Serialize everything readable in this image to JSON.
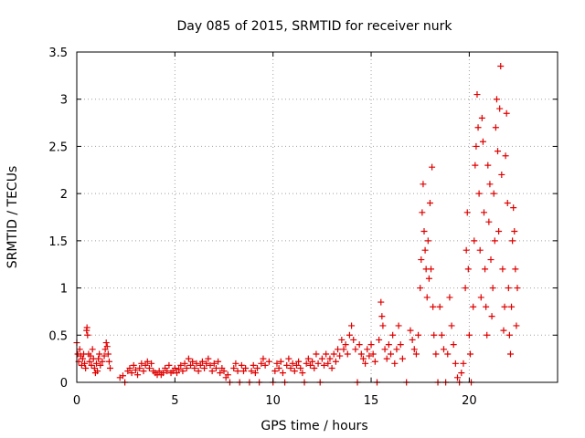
{
  "chart_data": {
    "type": "scatter",
    "title": "Day 085 of 2015, SRMTID for receiver nurk",
    "xlabel": "GPS time / hours",
    "ylabel": "SRMTID / TECUs",
    "xlim": [
      0,
      24.5
    ],
    "ylim": [
      0,
      3.5
    ],
    "x_ticks": [
      0,
      5,
      10,
      15,
      20
    ],
    "x_tick_labels": [
      "0",
      "5",
      "10",
      "15",
      "20"
    ],
    "y_ticks": [
      0,
      0.5,
      1,
      1.5,
      2,
      2.5,
      3,
      3.5
    ],
    "y_tick_labels": [
      "0",
      "0.5",
      "1",
      "1.5",
      "2",
      "2.5",
      "3",
      "3.5"
    ],
    "grid": true,
    "marker": "plus",
    "series": [
      {
        "name": "SRMTID",
        "color": "#e00000",
        "points": [
          [
            0.0,
            0.42
          ],
          [
            0.05,
            0.3
          ],
          [
            0.1,
            0.22
          ],
          [
            0.15,
            0.35
          ],
          [
            0.2,
            0.28
          ],
          [
            0.25,
            0.18
          ],
          [
            0.3,
            0.25
          ],
          [
            0.35,
            0.3
          ],
          [
            0.4,
            0.2
          ],
          [
            0.45,
            0.15
          ],
          [
            0.5,
            0.55
          ],
          [
            0.52,
            0.58
          ],
          [
            0.55,
            0.5
          ],
          [
            0.6,
            0.3
          ],
          [
            0.65,
            0.22
          ],
          [
            0.7,
            0.28
          ],
          [
            0.75,
            0.18
          ],
          [
            0.8,
            0.35
          ],
          [
            0.85,
            0.25
          ],
          [
            0.9,
            0.15
          ],
          [
            0.95,
            0.1
          ],
          [
            1.0,
            0.2
          ],
          [
            1.05,
            0.12
          ],
          [
            1.1,
            0.25
          ],
          [
            1.15,
            0.3
          ],
          [
            1.2,
            0.18
          ],
          [
            1.3,
            0.22
          ],
          [
            1.4,
            0.28
          ],
          [
            1.45,
            0.35
          ],
          [
            1.5,
            0.42
          ],
          [
            1.55,
            0.38
          ],
          [
            1.6,
            0.3
          ],
          [
            1.65,
            0.22
          ],
          [
            1.7,
            0.15
          ],
          [
            2.2,
            0.05
          ],
          [
            2.35,
            0.07
          ],
          [
            2.45,
            0.0
          ],
          [
            2.6,
            0.12
          ],
          [
            2.7,
            0.15
          ],
          [
            2.8,
            0.1
          ],
          [
            2.9,
            0.18
          ],
          [
            3.0,
            0.13
          ],
          [
            3.1,
            0.08
          ],
          [
            3.2,
            0.15
          ],
          [
            3.3,
            0.2
          ],
          [
            3.4,
            0.12
          ],
          [
            3.5,
            0.18
          ],
          [
            3.6,
            0.22
          ],
          [
            3.7,
            0.15
          ],
          [
            3.8,
            0.2
          ],
          [
            3.9,
            0.12
          ],
          [
            4.0,
            0.1
          ],
          [
            4.1,
            0.08
          ],
          [
            4.2,
            0.12
          ],
          [
            4.3,
            0.08
          ],
          [
            4.4,
            0.1
          ],
          [
            4.5,
            0.15
          ],
          [
            4.6,
            0.12
          ],
          [
            4.7,
            0.18
          ],
          [
            4.8,
            0.1
          ],
          [
            4.9,
            0.12
          ],
          [
            5.0,
            0.15
          ],
          [
            5.1,
            0.1
          ],
          [
            5.2,
            0.14
          ],
          [
            5.3,
            0.18
          ],
          [
            5.4,
            0.12
          ],
          [
            5.5,
            0.2
          ],
          [
            5.6,
            0.15
          ],
          [
            5.7,
            0.25
          ],
          [
            5.8,
            0.18
          ],
          [
            5.9,
            0.22
          ],
          [
            6.0,
            0.15
          ],
          [
            6.1,
            0.2
          ],
          [
            6.2,
            0.12
          ],
          [
            6.3,
            0.18
          ],
          [
            6.4,
            0.22
          ],
          [
            6.5,
            0.15
          ],
          [
            6.6,
            0.2
          ],
          [
            6.7,
            0.25
          ],
          [
            6.8,
            0.18
          ],
          [
            6.9,
            0.12
          ],
          [
            7.0,
            0.2
          ],
          [
            7.1,
            0.15
          ],
          [
            7.2,
            0.22
          ],
          [
            7.3,
            0.1
          ],
          [
            7.4,
            0.15
          ],
          [
            7.5,
            0.12
          ],
          [
            7.6,
            0.05
          ],
          [
            7.7,
            0.08
          ],
          [
            7.8,
            0.0
          ],
          [
            8.0,
            0.15
          ],
          [
            8.1,
            0.2
          ],
          [
            8.2,
            0.12
          ],
          [
            8.3,
            0.0
          ],
          [
            8.4,
            0.18
          ],
          [
            8.5,
            0.12
          ],
          [
            8.6,
            0.15
          ],
          [
            8.8,
            0.0
          ],
          [
            8.9,
            0.12
          ],
          [
            9.0,
            0.18
          ],
          [
            9.1,
            0.1
          ],
          [
            9.2,
            0.15
          ],
          [
            9.3,
            0.0
          ],
          [
            9.4,
            0.2
          ],
          [
            9.5,
            0.25
          ],
          [
            9.6,
            0.18
          ],
          [
            9.8,
            0.22
          ],
          [
            10.0,
            0.0
          ],
          [
            10.1,
            0.12
          ],
          [
            10.2,
            0.2
          ],
          [
            10.3,
            0.15
          ],
          [
            10.4,
            0.22
          ],
          [
            10.5,
            0.1
          ],
          [
            10.6,
            0.0
          ],
          [
            10.7,
            0.18
          ],
          [
            10.8,
            0.25
          ],
          [
            10.9,
            0.15
          ],
          [
            11.0,
            0.2
          ],
          [
            11.1,
            0.12
          ],
          [
            11.2,
            0.18
          ],
          [
            11.3,
            0.22
          ],
          [
            11.4,
            0.15
          ],
          [
            11.5,
            0.1
          ],
          [
            11.6,
            0.0
          ],
          [
            11.7,
            0.2
          ],
          [
            11.8,
            0.25
          ],
          [
            11.9,
            0.18
          ],
          [
            12.0,
            0.22
          ],
          [
            12.1,
            0.15
          ],
          [
            12.2,
            0.3
          ],
          [
            12.3,
            0.2
          ],
          [
            12.4,
            0.0
          ],
          [
            12.5,
            0.25
          ],
          [
            12.6,
            0.18
          ],
          [
            12.7,
            0.3
          ],
          [
            12.8,
            0.2
          ],
          [
            12.9,
            0.25
          ],
          [
            13.0,
            0.15
          ],
          [
            13.1,
            0.3
          ],
          [
            13.2,
            0.22
          ],
          [
            13.3,
            0.35
          ],
          [
            13.4,
            0.28
          ],
          [
            13.5,
            0.45
          ],
          [
            13.6,
            0.35
          ],
          [
            13.7,
            0.4
          ],
          [
            13.8,
            0.3
          ],
          [
            13.9,
            0.5
          ],
          [
            14.0,
            0.6
          ],
          [
            14.1,
            0.45
          ],
          [
            14.2,
            0.35
          ],
          [
            14.3,
            0.0
          ],
          [
            14.4,
            0.4
          ],
          [
            14.5,
            0.3
          ],
          [
            14.6,
            0.25
          ],
          [
            14.7,
            0.2
          ],
          [
            14.8,
            0.35
          ],
          [
            14.9,
            0.28
          ],
          [
            15.0,
            0.4
          ],
          [
            15.1,
            0.3
          ],
          [
            15.2,
            0.22
          ],
          [
            15.3,
            0.0
          ],
          [
            15.4,
            0.45
          ],
          [
            15.5,
            0.85
          ],
          [
            15.55,
            0.7
          ],
          [
            15.6,
            0.6
          ],
          [
            15.7,
            0.35
          ],
          [
            15.8,
            0.25
          ],
          [
            15.9,
            0.4
          ],
          [
            16.0,
            0.3
          ],
          [
            16.1,
            0.5
          ],
          [
            16.2,
            0.2
          ],
          [
            16.3,
            0.35
          ],
          [
            16.4,
            0.6
          ],
          [
            16.5,
            0.4
          ],
          [
            16.6,
            0.25
          ],
          [
            16.8,
            0.0
          ],
          [
            17.0,
            0.55
          ],
          [
            17.1,
            0.45
          ],
          [
            17.2,
            0.35
          ],
          [
            17.3,
            0.3
          ],
          [
            17.4,
            0.5
          ],
          [
            17.5,
            1.0
          ],
          [
            17.55,
            1.3
          ],
          [
            17.6,
            1.8
          ],
          [
            17.65,
            2.1
          ],
          [
            17.7,
            1.6
          ],
          [
            17.75,
            1.4
          ],
          [
            17.8,
            1.2
          ],
          [
            17.85,
            0.9
          ],
          [
            17.9,
            1.5
          ],
          [
            17.95,
            1.1
          ],
          [
            18.0,
            1.9
          ],
          [
            18.05,
            1.2
          ],
          [
            18.1,
            2.28
          ],
          [
            18.15,
            0.8
          ],
          [
            18.2,
            0.5
          ],
          [
            18.3,
            0.3
          ],
          [
            18.4,
            0.0
          ],
          [
            18.5,
            0.8
          ],
          [
            18.6,
            0.5
          ],
          [
            18.7,
            0.35
          ],
          [
            18.8,
            0.0
          ],
          [
            18.9,
            0.3
          ],
          [
            19.0,
            0.9
          ],
          [
            19.1,
            0.6
          ],
          [
            19.2,
            0.4
          ],
          [
            19.3,
            0.2
          ],
          [
            19.4,
            0.05
          ],
          [
            19.5,
            0.0
          ],
          [
            19.6,
            0.1
          ],
          [
            19.7,
            0.2
          ],
          [
            19.8,
            1.0
          ],
          [
            19.85,
            1.4
          ],
          [
            19.9,
            1.8
          ],
          [
            19.95,
            1.2
          ],
          [
            20.0,
            0.5
          ],
          [
            20.05,
            0.3
          ],
          [
            20.1,
            0.0
          ],
          [
            20.2,
            0.8
          ],
          [
            20.25,
            1.5
          ],
          [
            20.3,
            2.3
          ],
          [
            20.35,
            2.5
          ],
          [
            20.4,
            3.05
          ],
          [
            20.45,
            2.7
          ],
          [
            20.5,
            2.0
          ],
          [
            20.55,
            1.4
          ],
          [
            20.6,
            0.9
          ],
          [
            20.65,
            2.8
          ],
          [
            20.7,
            2.55
          ],
          [
            20.75,
            1.8
          ],
          [
            20.8,
            1.2
          ],
          [
            20.85,
            0.8
          ],
          [
            20.9,
            0.5
          ],
          [
            20.95,
            2.3
          ],
          [
            21.0,
            1.7
          ],
          [
            21.05,
            2.1
          ],
          [
            21.1,
            1.3
          ],
          [
            21.15,
            0.7
          ],
          [
            21.2,
            1.0
          ],
          [
            21.25,
            2.0
          ],
          [
            21.3,
            1.5
          ],
          [
            21.35,
            2.7
          ],
          [
            21.4,
            3.0
          ],
          [
            21.45,
            2.45
          ],
          [
            21.5,
            1.6
          ],
          [
            21.55,
            2.9
          ],
          [
            21.6,
            3.35
          ],
          [
            21.65,
            2.2
          ],
          [
            21.7,
            1.2
          ],
          [
            21.75,
            0.55
          ],
          [
            21.8,
            0.8
          ],
          [
            21.85,
            2.4
          ],
          [
            21.9,
            2.85
          ],
          [
            21.95,
            1.9
          ],
          [
            22.0,
            1.0
          ],
          [
            22.05,
            0.5
          ],
          [
            22.1,
            0.3
          ],
          [
            22.15,
            0.8
          ],
          [
            22.2,
            1.5
          ],
          [
            22.25,
            1.85
          ],
          [
            22.3,
            1.6
          ],
          [
            22.35,
            1.2
          ],
          [
            22.4,
            0.6
          ],
          [
            22.45,
            1.0
          ]
        ]
      }
    ]
  }
}
